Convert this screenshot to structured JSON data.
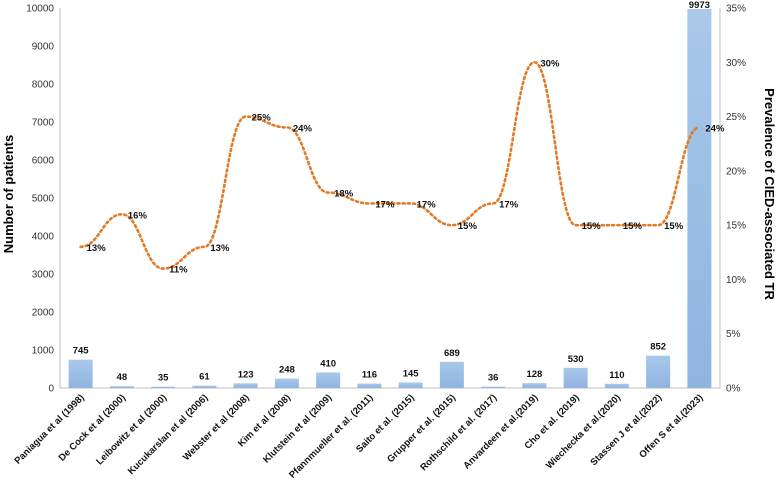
{
  "chart_data": {
    "type": "bar",
    "categories": [
      "Paniagua et al (1998)",
      "De Cock et al (2000)",
      "Leibowitz et al (2000)",
      "Kucukarslan et al (2006)",
      "Webster et al (2008)",
      "Kim et al (2008)",
      "Klutstein et al (2009)",
      "Pfannmueller et al. (2011)",
      "Saito et al. (2015)",
      "Grupper et al. (2015)",
      "Rothschild et al. (2017)",
      "Anvardeen et al.(2019)",
      "Cho et al. (2019)",
      "Wiechecka et al.(2020)",
      "Stassen J et al.(2022)",
      "Offen S et al.(2023)"
    ],
    "series": [
      {
        "type": "bar",
        "axis": "left",
        "values": [
          745,
          48,
          35,
          61,
          123,
          248,
          410,
          116,
          145,
          689,
          36,
          128,
          530,
          110,
          852,
          9973
        ],
        "labels": [
          "745",
          "48",
          "35",
          "61",
          "123",
          "248",
          "410",
          "116",
          "145",
          "689",
          "36",
          "128",
          "530",
          "110",
          "852",
          "9973"
        ],
        "color": "#9DC3E6"
      },
      {
        "type": "line",
        "axis": "right",
        "style": "dotted",
        "values": [
          13,
          16,
          11,
          13,
          25,
          24,
          18,
          17,
          17,
          15,
          17,
          30,
          15,
          15,
          15,
          24
        ],
        "labels": [
          "13%",
          "16%",
          "11%",
          "13%",
          "25%",
          "24%",
          "18%",
          "17%",
          "17%",
          "15%",
          "17%",
          "30%",
          "15%",
          "15%",
          "15%",
          "24%"
        ],
        "color": "#E07B2A"
      }
    ],
    "ylabel": "Number of patients",
    "ylabel_right": "Prevalence of CIED-associated TR",
    "ylim": [
      0,
      10000
    ],
    "ylim_right": [
      0,
      35
    ],
    "yticks": [
      "0",
      "1000",
      "2000",
      "3000",
      "4000",
      "5000",
      "6000",
      "7000",
      "8000",
      "9000",
      "10000"
    ],
    "yticks_right": [
      "0%",
      "5%",
      "10%",
      "15%",
      "20%",
      "25%",
      "30%",
      "35%"
    ],
    "grid": false,
    "legend": "none"
  }
}
